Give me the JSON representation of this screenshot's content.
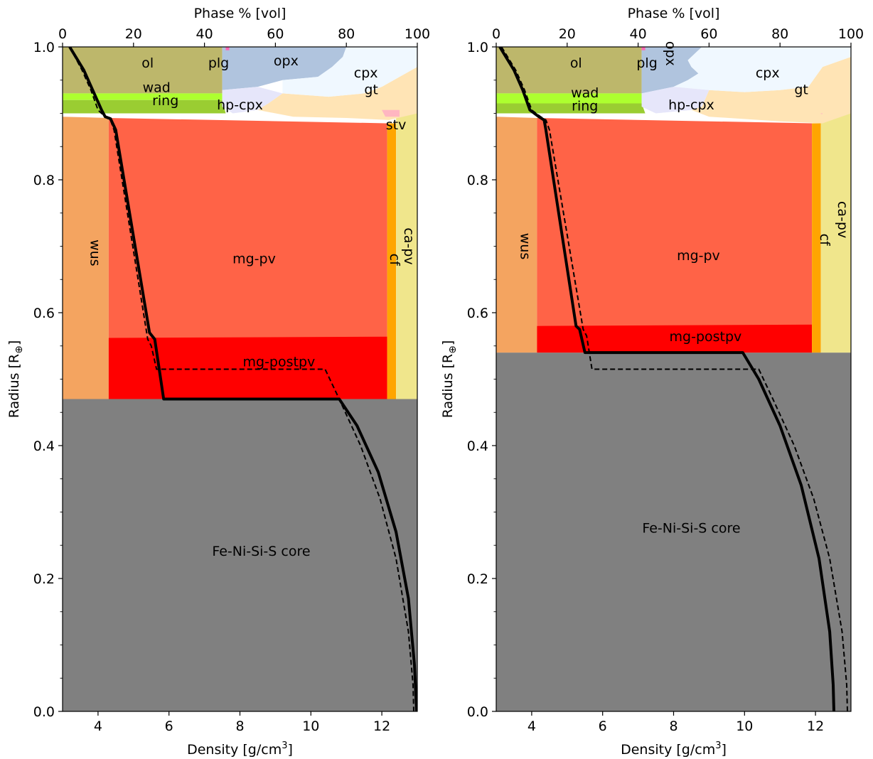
{
  "chart_data": [
    {
      "type": "area",
      "panel": "left",
      "xlabel_bottom": "Density [g/cm",
      "xlabel_bottom_sup": "3",
      "xlabel_bottom_end": "]",
      "xlabel_top": "Phase % [vol]",
      "ylabel": "Radius [R",
      "ylabel_sub": "⊕",
      "ylabel_end": "]",
      "xlim": [
        3,
        13
      ],
      "ylim": [
        0,
        1
      ],
      "top_xlim": [
        0,
        100
      ],
      "x_ticks": [
        "4",
        "6",
        "8",
        "10",
        "12"
      ],
      "x_tick_values": [
        4,
        6,
        8,
        10,
        12
      ],
      "top_ticks": [
        "0",
        "20",
        "40",
        "60",
        "80",
        "100"
      ],
      "top_tick_values": [
        0,
        20,
        40,
        60,
        80,
        100
      ],
      "y_ticks": [
        "0.0",
        "0.2",
        "0.4",
        "0.6",
        "0.8",
        "1.0"
      ],
      "y_tick_values": [
        0,
        0.2,
        0.4,
        0.6,
        0.8,
        1.0
      ],
      "core_radius": 0.47,
      "colors": {
        "core": "#808080",
        "wus": "#f4a460",
        "mg_pv": "#ff6347",
        "mg_postpv": "#ff0000",
        "cf": "#ffa500",
        "ca_pv": "#f0e68c",
        "ol": "#bdb76b",
        "wad": "#adff2f",
        "ring": "#9acd32",
        "opx": "#b0c4de",
        "cpx": "#f0f8ff",
        "gt": "#ffe4b5",
        "hp_cpx": "#e6e6fa",
        "stv": "#ffb6c1",
        "plg": "#ff69b4"
      },
      "phase_labels": [
        {
          "text": "ol",
          "x": 24,
          "y": 0.975,
          "rotate": 0
        },
        {
          "text": "plg",
          "x": 44,
          "y": 0.975,
          "rotate": 0
        },
        {
          "text": "opx",
          "x": 63,
          "y": 0.978,
          "rotate": 0
        },
        {
          "text": "cpx",
          "x": 85.5,
          "y": 0.96,
          "rotate": 0
        },
        {
          "text": "gt",
          "x": 87,
          "y": 0.935,
          "rotate": 0
        },
        {
          "text": "wad",
          "x": 26.5,
          "y": 0.938,
          "rotate": 0
        },
        {
          "text": "ring",
          "x": 29,
          "y": 0.918,
          "rotate": 0
        },
        {
          "text": "hp-cpx",
          "x": 50,
          "y": 0.912,
          "rotate": 0
        },
        {
          "text": "stv",
          "x": 94,
          "y": 0.882,
          "rotate": 0
        },
        {
          "text": "mg-pv",
          "x": 54,
          "y": 0.68,
          "rotate": 0
        },
        {
          "text": "mg-postpv",
          "x": 61,
          "y": 0.525,
          "rotate": 0
        },
        {
          "text": "wus",
          "x": 9,
          "y": 0.69,
          "rotate": 90
        },
        {
          "text": "cf",
          "x": 93.5,
          "y": 0.68,
          "rotate": 90
        },
        {
          "text": "ca-pv",
          "x": 97.5,
          "y": 0.7,
          "rotate": 90
        },
        {
          "text": "Fe-Ni-Si-S core",
          "x": 56,
          "y": 0.24,
          "rotate": 0
        }
      ],
      "solid_profile": {
        "x": [
          3.2,
          3.6,
          3.85,
          4.1,
          4.2,
          4.35,
          4.5,
          5.45,
          5.6,
          5.85,
          10.8,
          11.3,
          11.9,
          12.4,
          12.75,
          12.92,
          12.98
        ],
        "y": [
          1.0,
          0.965,
          0.935,
          0.905,
          0.895,
          0.892,
          0.875,
          0.57,
          0.56,
          0.47,
          0.47,
          0.43,
          0.36,
          0.27,
          0.17,
          0.07,
          0.0
        ]
      },
      "dashed_profile": {
        "x": [
          3.2,
          3.55,
          3.8,
          4.0,
          4.2,
          4.35,
          4.45,
          5.4,
          5.5,
          5.65,
          10.4,
          10.8,
          11.4,
          11.95,
          12.4,
          12.75,
          12.88,
          12.9
        ],
        "y": [
          1.0,
          0.965,
          0.935,
          0.905,
          0.895,
          0.89,
          0.875,
          0.56,
          0.55,
          0.515,
          0.515,
          0.47,
          0.4,
          0.32,
          0.23,
          0.12,
          0.04,
          0.0
        ]
      }
    },
    {
      "type": "area",
      "panel": "right",
      "xlabel_bottom": "Density [g/cm",
      "xlabel_bottom_sup": "3",
      "xlabel_bottom_end": "]",
      "xlabel_top": "Phase % [vol]",
      "ylabel": "Radius [R",
      "ylabel_sub": "⊕",
      "ylabel_end": "]",
      "xlim": [
        3,
        13
      ],
      "ylim": [
        0,
        1
      ],
      "top_xlim": [
        0,
        100
      ],
      "x_ticks": [
        "4",
        "6",
        "8",
        "10",
        "12"
      ],
      "x_tick_values": [
        4,
        6,
        8,
        10,
        12
      ],
      "top_ticks": [
        "0",
        "20",
        "40",
        "60",
        "80",
        "100"
      ],
      "top_tick_values": [
        0,
        20,
        40,
        60,
        80,
        100
      ],
      "y_ticks": [
        "0.0",
        "0.2",
        "0.4",
        "0.6",
        "0.8",
        "1.0"
      ],
      "y_tick_values": [
        0,
        0.2,
        0.4,
        0.6,
        0.8,
        1.0
      ],
      "core_radius": 0.54,
      "colors": {
        "core": "#808080",
        "wus": "#f4a460",
        "mg_pv": "#ff6347",
        "mg_postpv": "#ff0000",
        "cf": "#ffa500",
        "ca_pv": "#f0e68c",
        "ol": "#bdb76b",
        "wad": "#adff2f",
        "ring": "#9acd32",
        "opx": "#b0c4de",
        "cpx": "#f0f8ff",
        "gt": "#ffe4b5",
        "hp_cpx": "#e6e6fa",
        "stv": "#ffb6c1",
        "plg": "#ff69b4"
      },
      "phase_labels": [
        {
          "text": "ol",
          "x": 22.5,
          "y": 0.975,
          "rotate": 0
        },
        {
          "text": "plg",
          "x": 42.5,
          "y": 0.975,
          "rotate": 0
        },
        {
          "text": "opx",
          "x": 49,
          "y": 0.99,
          "rotate": 90
        },
        {
          "text": "cpx",
          "x": 76.5,
          "y": 0.96,
          "rotate": 0
        },
        {
          "text": "gt",
          "x": 86,
          "y": 0.935,
          "rotate": 0
        },
        {
          "text": "wad",
          "x": 25,
          "y": 0.93,
          "rotate": 0
        },
        {
          "text": "ring",
          "x": 25,
          "y": 0.91,
          "rotate": 0
        },
        {
          "text": "hp-cpx",
          "x": 55,
          "y": 0.912,
          "rotate": 0
        },
        {
          "text": "mg-pv",
          "x": 57,
          "y": 0.685,
          "rotate": 0
        },
        {
          "text": "mg-postpv",
          "x": 59,
          "y": 0.563,
          "rotate": 0
        },
        {
          "text": "wus",
          "x": 8,
          "y": 0.7,
          "rotate": 90
        },
        {
          "text": "cf",
          "x": 92.5,
          "y": 0.71,
          "rotate": 90
        },
        {
          "text": "ca-pv",
          "x": 97.5,
          "y": 0.74,
          "rotate": 90
        },
        {
          "text": "Fe-Ni-Si-S core",
          "x": 55,
          "y": 0.275,
          "rotate": 0
        }
      ],
      "solid_profile": {
        "x": [
          3.1,
          3.5,
          3.75,
          3.95,
          4.2,
          4.35,
          4.4,
          5.25,
          5.35,
          5.5,
          9.95,
          10.4,
          11.0,
          11.6,
          12.1,
          12.4,
          12.5,
          12.52
        ],
        "y": [
          1.0,
          0.965,
          0.935,
          0.905,
          0.895,
          0.89,
          0.875,
          0.58,
          0.575,
          0.54,
          0.54,
          0.5,
          0.43,
          0.34,
          0.23,
          0.12,
          0.04,
          0.0
        ]
      },
      "dashed_profile": {
        "x": [
          3.15,
          3.55,
          3.8,
          4.0,
          4.25,
          4.4,
          4.5,
          5.45,
          5.55,
          5.7,
          10.4,
          10.8,
          11.4,
          11.95,
          12.4,
          12.75,
          12.88,
          12.9
        ],
        "y": [
          1.0,
          0.965,
          0.935,
          0.905,
          0.895,
          0.89,
          0.875,
          0.575,
          0.565,
          0.515,
          0.515,
          0.47,
          0.4,
          0.32,
          0.23,
          0.12,
          0.04,
          0.0
        ]
      }
    }
  ]
}
